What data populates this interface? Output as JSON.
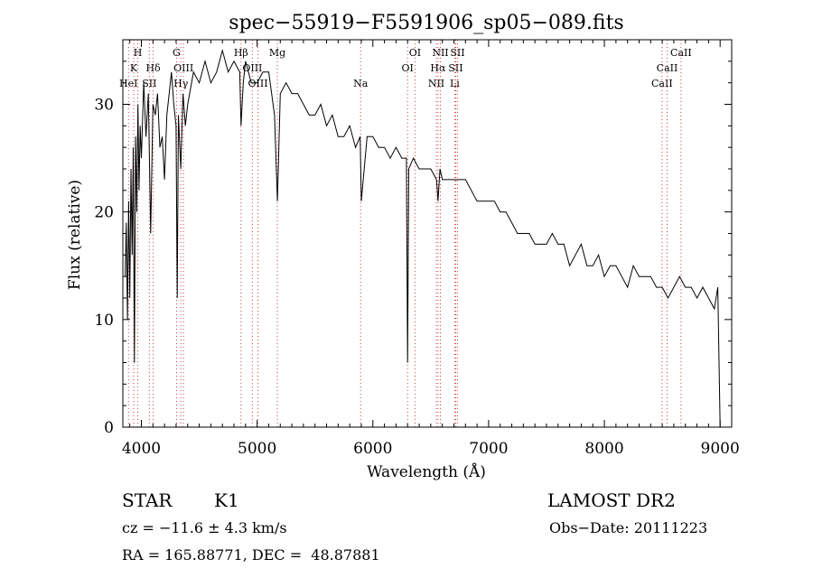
{
  "chart_data": {
    "type": "line",
    "title": "spec−55919−F5591906_sp05−089.fits",
    "xlabel": "Wavelength (Å)",
    "ylabel": "Flux (relative)",
    "xlim": [
      3840,
      9100
    ],
    "ylim": [
      0,
      36
    ],
    "xticks": [
      4000,
      5000,
      6000,
      7000,
      8000,
      9000
    ],
    "yticks": [
      0,
      10,
      20,
      30
    ],
    "series": [
      {
        "x": [
          3860,
          3870,
          3880,
          3890,
          3900,
          3910,
          3920,
          3930,
          3940,
          3950,
          3960,
          3970,
          3980,
          3990,
          4000,
          4020,
          4040,
          4060,
          4080,
          4100,
          4120,
          4140,
          4160,
          4180,
          4200,
          4220,
          4240,
          4260,
          4280,
          4300,
          4310,
          4320,
          4340,
          4360,
          4380,
          4400,
          4450,
          4500,
          4550,
          4600,
          4650,
          4700,
          4750,
          4800,
          4850,
          4861,
          4880,
          4900,
          4950,
          5000,
          5050,
          5100,
          5150,
          5175,
          5200,
          5250,
          5300,
          5350,
          5400,
          5450,
          5500,
          5550,
          5600,
          5650,
          5700,
          5750,
          5800,
          5850,
          5890,
          5900,
          5950,
          6000,
          6050,
          6100,
          6150,
          6200,
          6250,
          6290,
          6300,
          6310,
          6350,
          6400,
          6450,
          6500,
          6550,
          6563,
          6580,
          6600,
          6650,
          6700,
          6750,
          6800,
          6850,
          6900,
          6950,
          7000,
          7050,
          7100,
          7150,
          7200,
          7250,
          7300,
          7350,
          7400,
          7450,
          7500,
          7550,
          7600,
          7650,
          7700,
          7750,
          7800,
          7850,
          7900,
          7950,
          8000,
          8050,
          8100,
          8150,
          8200,
          8250,
          8300,
          8350,
          8400,
          8450,
          8500,
          8550,
          8600,
          8650,
          8700,
          8750,
          8800,
          8850,
          8900,
          8950,
          8980,
          9000
        ],
        "y": [
          14,
          19,
          10,
          21,
          12,
          24,
          16,
          26,
          6,
          27,
          20,
          30,
          22,
          28,
          25,
          32,
          27,
          31,
          18,
          30,
          29,
          31,
          26,
          27,
          23,
          29,
          31,
          33,
          30,
          28,
          12,
          29,
          24,
          31,
          28,
          30,
          33,
          32,
          34,
          32,
          33,
          35,
          33,
          34,
          33,
          28,
          32,
          34,
          32,
          32,
          33,
          33,
          29,
          21,
          31,
          32,
          31,
          31,
          30,
          29,
          29,
          30,
          28,
          29,
          27,
          27,
          28,
          26,
          27,
          21,
          27,
          27,
          26,
          26,
          25,
          26,
          25,
          25,
          6,
          24,
          25,
          24,
          24,
          24,
          23,
          21,
          24,
          23,
          23,
          23,
          23,
          23,
          22,
          21,
          21,
          21,
          21,
          20,
          20,
          19,
          18,
          18,
          18,
          17,
          17,
          17,
          18,
          17,
          17,
          15,
          16,
          17,
          15,
          15,
          16,
          14,
          15,
          15,
          14,
          13,
          15,
          14,
          14,
          14,
          13,
          13,
          12,
          13,
          14,
          13,
          13,
          12,
          13,
          12,
          11,
          13,
          0
        ]
      }
    ],
    "lines": [
      {
        "wl": 3889,
        "labels": [
          {
            "text": "HeI",
            "row": 3
          }
        ]
      },
      {
        "wl": 3934,
        "labels": [
          {
            "text": "K",
            "row": 2
          }
        ]
      },
      {
        "wl": 3969,
        "labels": [
          {
            "text": "H",
            "row": 1
          }
        ]
      },
      {
        "wl": 4069,
        "labels": [
          {
            "text": "SII",
            "row": 3
          }
        ]
      },
      {
        "wl": 4102,
        "labels": [
          {
            "text": "Hδ",
            "row": 2
          }
        ]
      },
      {
        "wl": 4304,
        "labels": [
          {
            "text": "G",
            "row": 1
          }
        ]
      },
      {
        "wl": 4341,
        "labels": [
          {
            "text": "Hγ",
            "row": 3
          }
        ]
      },
      {
        "wl": 4364,
        "labels": [
          {
            "text": "OIII",
            "row": 2
          }
        ]
      },
      {
        "wl": 4861,
        "labels": [
          {
            "text": "Hβ",
            "row": 1
          }
        ]
      },
      {
        "wl": 4959,
        "labels": [
          {
            "text": "OIII",
            "row": 2
          }
        ]
      },
      {
        "wl": 5007,
        "labels": [
          {
            "text": "OIII",
            "row": 3
          }
        ]
      },
      {
        "wl": 5175,
        "labels": [
          {
            "text": "Mg",
            "row": 1
          }
        ]
      },
      {
        "wl": 5894,
        "labels": [
          {
            "text": "Na",
            "row": 3
          }
        ]
      },
      {
        "wl": 6300,
        "labels": [
          {
            "text": "OI",
            "row": 2
          }
        ]
      },
      {
        "wl": 6364,
        "labels": [
          {
            "text": "OI",
            "row": 1
          }
        ]
      },
      {
        "wl": 6548,
        "labels": [
          {
            "text": "NII",
            "row": 3
          }
        ]
      },
      {
        "wl": 6563,
        "labels": [
          {
            "text": "Hα",
            "row": 2
          }
        ]
      },
      {
        "wl": 6583,
        "labels": [
          {
            "text": "NII",
            "row": 1
          }
        ]
      },
      {
        "wl": 6707,
        "labels": [
          {
            "text": "Li",
            "row": 3
          }
        ]
      },
      {
        "wl": 6716,
        "labels": [
          {
            "text": "SII",
            "row": 2
          }
        ]
      },
      {
        "wl": 6731,
        "labels": [
          {
            "text": "SII",
            "row": 1
          }
        ]
      },
      {
        "wl": 8498,
        "labels": [
          {
            "text": "CaII",
            "row": 3
          }
        ]
      },
      {
        "wl": 8542,
        "labels": [
          {
            "text": "CaII",
            "row": 2
          }
        ]
      },
      {
        "wl": 8662,
        "labels": [
          {
            "text": "CaII",
            "row": 1
          }
        ]
      }
    ],
    "grid": false,
    "line_marker_color": "#d04040"
  },
  "info": {
    "class": "STAR",
    "subclass": "K1",
    "survey": "LAMOST DR2",
    "cz": "cz = −11.6 ± 4.3 km/s",
    "obs_date": "Obs−Date: 20111223",
    "coords": "RA = 165.88771, DEC =  48.87881"
  }
}
